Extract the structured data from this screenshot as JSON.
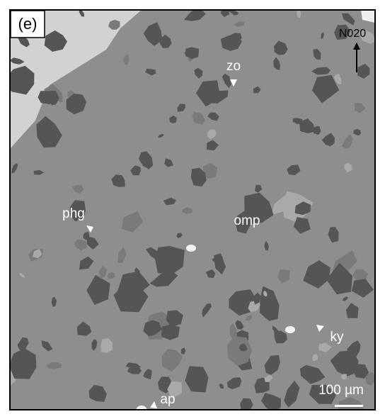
{
  "panel_label": "(e)",
  "orientation": "N020",
  "scale_bar": "100 µm",
  "annotations": [
    "zo",
    "phg",
    "omp",
    "ky",
    "ap"
  ]
}
